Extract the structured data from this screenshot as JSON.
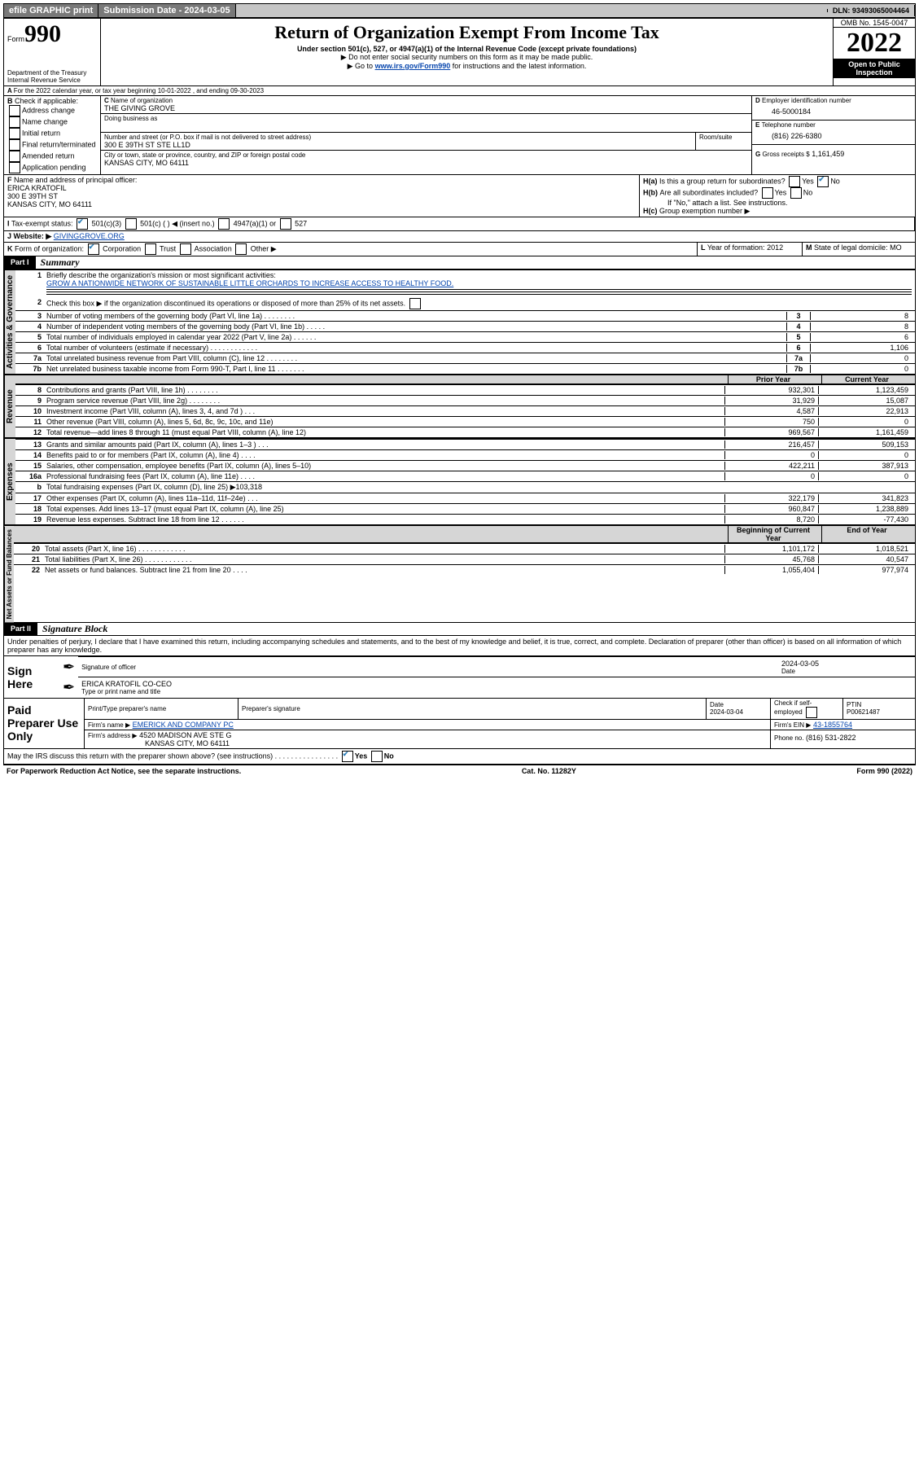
{
  "topbar": {
    "graphic_btn": "efile GRAPHIC print",
    "sub_label": "Submission Date - 2024-03-05",
    "dln": "DLN: 93493065004464"
  },
  "header": {
    "form_label": "Form",
    "form_no": "990",
    "dept": "Department of the Treasury",
    "irs": "Internal Revenue Service",
    "title": "Return of Organization Exempt From Income Tax",
    "subtitle": "Under section 501(c), 527, or 4947(a)(1) of the Internal Revenue Code (except private foundations)",
    "note1": "▶ Do not enter social security numbers on this form as it may be made public.",
    "note2_pre": "▶ Go to ",
    "note2_link": "www.irs.gov/Form990",
    "note2_post": " for instructions and the latest information.",
    "omb": "OMB No. 1545-0047",
    "year": "2022",
    "opi": "Open to Public Inspection"
  },
  "A": {
    "line": "For the 2022 calendar year, or tax year beginning 10-01-2022   , and ending 09-30-2023"
  },
  "B": {
    "label": "Check if applicable:",
    "items": [
      "Address change",
      "Name change",
      "Initial return",
      "Final return/terminated",
      "Amended return",
      "Application pending"
    ]
  },
  "C": {
    "name_label": "Name of organization",
    "name": "THE GIVING GROVE",
    "dba_label": "Doing business as",
    "addr_label": "Number and street (or P.O. box if mail is not delivered to street address)",
    "room_label": "Room/suite",
    "addr": "300 E 39TH ST STE LL1D",
    "city_label": "City or town, state or province, country, and ZIP or foreign postal code",
    "city": "KANSAS CITY, MO  64111"
  },
  "D": {
    "label": "Employer identification number",
    "val": "46-5000184"
  },
  "E": {
    "label": "Telephone number",
    "val": "(816) 226-6380"
  },
  "G": {
    "label": "Gross receipts $",
    "val": "1,161,459"
  },
  "F": {
    "label": "Name and address of principal officer:",
    "name": "ERICA KRATOFIL",
    "addr": "300 E 39TH ST",
    "city": "KANSAS CITY, MO  64111"
  },
  "H": {
    "a": "Is this a group return for subordinates?",
    "b": "Are all subordinates included?",
    "b_note": "If \"No,\" attach a list. See instructions.",
    "c": "Group exemption number ▶",
    "yes": "Yes",
    "no": "No"
  },
  "I": {
    "label": "Tax-exempt status:",
    "opts": [
      "501(c)(3)",
      "501(c) (  ) ◀ (insert no.)",
      "4947(a)(1) or",
      "527"
    ]
  },
  "J": {
    "label": "Website: ▶",
    "val": "GIVINGGROVE.ORG"
  },
  "K": {
    "label": "Form of organization:",
    "opts": [
      "Corporation",
      "Trust",
      "Association",
      "Other ▶"
    ]
  },
  "L": {
    "label": "Year of formation:",
    "val": "2012"
  },
  "M": {
    "label": "State of legal domicile:",
    "val": "MO"
  },
  "part1": {
    "title": "Summary",
    "l1_label": "Briefly describe the organization's mission or most significant activities:",
    "l1_val": "GROW A NATIONWIDE NETWORK OF SUSTAINABLE LITTLE ORCHARDS TO INCREASE ACCESS TO HEALTHY FOOD.",
    "l2": "Check this box ▶  if the organization discontinued its operations or disposed of more than 25% of its net assets.",
    "gov": [
      {
        "n": "3",
        "d": "Number of voting members of the governing body (Part VI, line 1a)  .    .    .    .    .    .    .    .",
        "v": "8"
      },
      {
        "n": "4",
        "d": "Number of independent voting members of the governing body (Part VI, line 1b)   .    .    .    .    .",
        "v": "8"
      },
      {
        "n": "5",
        "d": "Total number of individuals employed in calendar year 2022 (Part V, line 2a)  .    .    .    .    .    .",
        "v": "6"
      },
      {
        "n": "6",
        "d": "Total number of volunteers (estimate if necessary)   .    .    .    .    .    .    .    .    .    .    .    .",
        "v": "1,106"
      },
      {
        "n": "7a",
        "d": "Total unrelated business revenue from Part VIII, column (C), line 12   .    .    .    .    .    .    .    .",
        "v": "0"
      },
      {
        "n": "7b",
        "d": "Net unrelated business taxable income from Form 990-T, Part I, line 11   .    .    .    .    .    .    .",
        "v": "0"
      }
    ],
    "dual_head_prior": "Prior Year",
    "dual_head_curr": "Current Year",
    "rev": [
      {
        "n": "8",
        "d": "Contributions and grants (Part VIII, line 1h) .    .    .    .    .    .    .    .",
        "p": "932,301",
        "c": "1,123,459"
      },
      {
        "n": "9",
        "d": "Program service revenue (Part VIII, line 2g) .    .    .    .    .    .    .    .",
        "p": "31,929",
        "c": "15,087"
      },
      {
        "n": "10",
        "d": "Investment income (Part VIII, column (A), lines 3, 4, and 7d )   .    .    .",
        "p": "4,587",
        "c": "22,913"
      },
      {
        "n": "11",
        "d": "Other revenue (Part VIII, column (A), lines 5, 6d, 8c, 9c, 10c, and 11e)",
        "p": "750",
        "c": "0"
      },
      {
        "n": "12",
        "d": "Total revenue—add lines 8 through 11 (must equal Part VIII, column (A), line 12)",
        "p": "969,567",
        "c": "1,161,459"
      }
    ],
    "exp": [
      {
        "n": "13",
        "d": "Grants and similar amounts paid (Part IX, column (A), lines 1–3 )  .    .    .",
        "p": "216,457",
        "c": "509,153"
      },
      {
        "n": "14",
        "d": "Benefits paid to or for members (Part IX, column (A), line 4)  .    .    .    .",
        "p": "0",
        "c": "0"
      },
      {
        "n": "15",
        "d": "Salaries, other compensation, employee benefits (Part IX, column (A), lines 5–10)",
        "p": "422,211",
        "c": "387,913"
      },
      {
        "n": "16a",
        "d": "Professional fundraising fees (Part IX, column (A), line 11e)   .    .    .    .",
        "p": "0",
        "c": "0"
      },
      {
        "n": "b",
        "d": "Total fundraising expenses (Part IX, column (D), line 25) ▶103,318",
        "p": "",
        "c": ""
      },
      {
        "n": "17",
        "d": "Other expenses (Part IX, column (A), lines 11a–11d, 11f–24e)   .    .    .",
        "p": "322,179",
        "c": "341,823"
      },
      {
        "n": "18",
        "d": "Total expenses. Add lines 13–17 (must equal Part IX, column (A), line 25)",
        "p": "960,847",
        "c": "1,238,889"
      },
      {
        "n": "19",
        "d": "Revenue less expenses. Subtract line 18 from line 12  .    .    .    .    .    .",
        "p": "8,720",
        "c": "-77,430"
      }
    ],
    "na_head_b": "Beginning of Current Year",
    "na_head_e": "End of Year",
    "na": [
      {
        "n": "20",
        "d": "Total assets (Part X, line 16)  .    .    .    .    .    .    .    .    .    .    .    .",
        "p": "1,101,172",
        "c": "1,018,521"
      },
      {
        "n": "21",
        "d": "Total liabilities (Part X, line 26)  .    .    .    .    .    .    .    .    .    .    .    .",
        "p": "45,768",
        "c": "40,547"
      },
      {
        "n": "22",
        "d": "Net assets or fund balances. Subtract line 21 from line 20  .    .    .    .",
        "p": "1,055,404",
        "c": "977,974"
      }
    ]
  },
  "vtabs": {
    "gov": "Activities & Governance",
    "rev": "Revenue",
    "exp": "Expenses",
    "na": "Net Assets or Fund Balances"
  },
  "part2": {
    "title": "Signature Block",
    "decl": "Under penalties of perjury, I declare that I have examined this return, including accompanying schedules and statements, and to the best of my knowledge and belief, it is true, correct, and complete. Declaration of preparer (other than officer) is based on all information of which preparer has any knowledge.",
    "sign_here": "Sign Here",
    "sig_officer": "Signature of officer",
    "date": "Date",
    "date_v": "2024-03-05",
    "officer_name": "ERICA KRATOFIL CO-CEO",
    "type_name": "Type or print name and title",
    "paid": "Paid Preparer Use Only",
    "pp_name": "Print/Type preparer's name",
    "pp_sig": "Preparer's signature",
    "pp_date": "Date",
    "pp_date_v": "2024-03-04",
    "pp_check": "Check    if self-employed",
    "ptin_l": "PTIN",
    "ptin": "P00621487",
    "firm_name_l": "Firm's name   ▶",
    "firm_name": "EMERICK AND COMPANY PC",
    "firm_ein_l": "Firm's EIN ▶",
    "firm_ein": "43-1855764",
    "firm_addr_l": "Firm's address ▶",
    "firm_addr": "4520 MADISON AVE STE G",
    "firm_city": "KANSAS CITY, MO  64111",
    "phone_l": "Phone no.",
    "phone": "(816) 531-2822",
    "may": "May the IRS discuss this return with the preparer shown above? (see instructions)   .    .    .    .    .    .    .    .    .    .    .    .    .    .    .    .",
    "yes": "Yes",
    "no": "No"
  },
  "footer": {
    "pra": "For Paperwork Reduction Act Notice, see the separate instructions.",
    "cat": "Cat. No. 11282Y",
    "form": "Form 990 (2022)"
  }
}
